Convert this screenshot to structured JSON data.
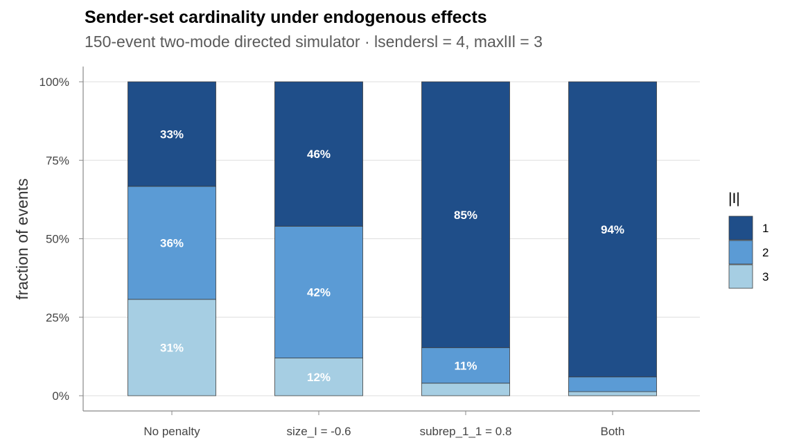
{
  "chart_data": {
    "type": "bar",
    "stacked": true,
    "title": "Sender-set cardinality under endogenous effects",
    "subtitle": "150-event two-mode directed simulator · lsendersl = 4, maxlIl = 3",
    "xlabel": "",
    "ylabel": "fraction of events",
    "ylim": [
      0,
      1
    ],
    "yticks": [
      "0%",
      "25%",
      "50%",
      "75%",
      "100%"
    ],
    "categories": [
      "No penalty",
      "size_I = -0.6",
      "subrep_1_1 = 0.8",
      "Both"
    ],
    "legend": {
      "title": "|I|",
      "placement": "right"
    },
    "series": [
      {
        "name": "3",
        "color": "#a6cee3",
        "values": [
          0.307,
          0.12,
          0.04,
          0.013
        ],
        "labels": [
          "31%",
          "12%",
          "",
          ""
        ]
      },
      {
        "name": "2",
        "color": "#5b9bd5",
        "values": [
          0.36,
          0.42,
          0.113,
          0.047
        ],
        "labels": [
          "36%",
          "42%",
          "11%",
          ""
        ]
      },
      {
        "name": "1",
        "color": "#1f4e89",
        "values": [
          0.333,
          0.46,
          0.847,
          0.94
        ],
        "labels": [
          "33%",
          "46%",
          "85%",
          "94%"
        ]
      }
    ],
    "grid": "horizontal"
  }
}
